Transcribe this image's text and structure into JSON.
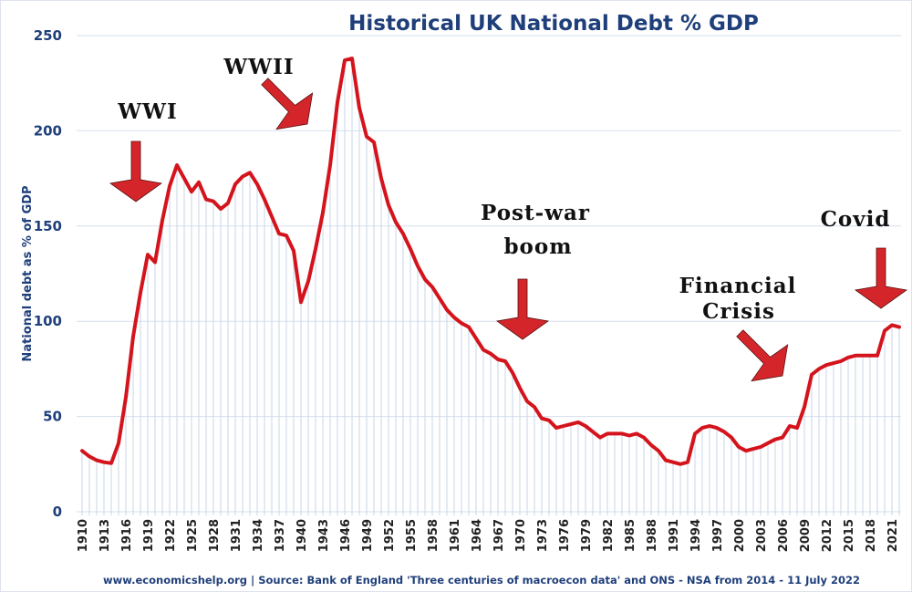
{
  "chart_data": {
    "type": "line",
    "title": "Historical UK National Debt % GDP",
    "ylabel": "National debt as % of GDP",
    "xlabel": "",
    "ylim": [
      0,
      250
    ],
    "yticks": [
      0,
      50,
      100,
      150,
      200,
      250
    ],
    "xlim": [
      1910,
      2022
    ],
    "xtick_labels": [
      "1910",
      "1913",
      "1916",
      "1919",
      "1922",
      "1925",
      "1928",
      "1931",
      "1934",
      "1937",
      "1940",
      "1943",
      "1946",
      "1949",
      "1952",
      "1955",
      "1958",
      "1961",
      "1964",
      "1967",
      "1970",
      "1973",
      "1976",
      "1979",
      "1982",
      "1985",
      "1988",
      "1991",
      "1994",
      "1997",
      "2000",
      "2003",
      "2006",
      "2009",
      "2012",
      "2015",
      "2018",
      "2021"
    ],
    "grid": "horizontal",
    "line_color": "#d4141c",
    "dropline_color": "#c9d6ea",
    "x": [
      1910,
      1911,
      1912,
      1913,
      1914,
      1915,
      1916,
      1917,
      1918,
      1919,
      1920,
      1921,
      1922,
      1923,
      1924,
      1925,
      1926,
      1927,
      1928,
      1929,
      1930,
      1931,
      1932,
      1933,
      1934,
      1935,
      1936,
      1937,
      1938,
      1939,
      1940,
      1941,
      1942,
      1943,
      1944,
      1945,
      1946,
      1947,
      1948,
      1949,
      1950,
      1951,
      1952,
      1953,
      1954,
      1955,
      1956,
      1957,
      1958,
      1959,
      1960,
      1961,
      1962,
      1963,
      1964,
      1965,
      1966,
      1967,
      1968,
      1969,
      1970,
      1971,
      1972,
      1973,
      1974,
      1975,
      1976,
      1977,
      1978,
      1979,
      1980,
      1981,
      1982,
      1983,
      1984,
      1985,
      1986,
      1987,
      1988,
      1989,
      1990,
      1991,
      1992,
      1993,
      1994,
      1995,
      1996,
      1997,
      1998,
      1999,
      2000,
      2001,
      2002,
      2003,
      2004,
      2005,
      2006,
      2007,
      2008,
      2009,
      2010,
      2011,
      2012,
      2013,
      2014,
      2015,
      2016,
      2017,
      2018,
      2019,
      2020,
      2021,
      2022
    ],
    "y": [
      32,
      29,
      27,
      26,
      25.5,
      36,
      60,
      92,
      115,
      135,
      131,
      153,
      171,
      182,
      175,
      168,
      173,
      164,
      163,
      159,
      162,
      172,
      176,
      178,
      172,
      164,
      155,
      146,
      145,
      137,
      110,
      121,
      138,
      157,
      182,
      215,
      237,
      238,
      212,
      197,
      194,
      175,
      161,
      152,
      146,
      138,
      129,
      122,
      118,
      112,
      106,
      102,
      99,
      97,
      91,
      85,
      83,
      80,
      79,
      73,
      65,
      58,
      55,
      49,
      48,
      44,
      45,
      46,
      47,
      45,
      42,
      39,
      41,
      41,
      41,
      40,
      41,
      39,
      35,
      32,
      27,
      26,
      25,
      26,
      41,
      44,
      45,
      44,
      42,
      39,
      34,
      32,
      33,
      34,
      36,
      38,
      39,
      45,
      44,
      55,
      72,
      75,
      77,
      78,
      79,
      81,
      82,
      82,
      82,
      82,
      95,
      98,
      97
    ],
    "annotations": [
      {
        "label": "WWI",
        "year": 1917
      },
      {
        "label": "WWII",
        "year": 1943
      },
      {
        "label": "Post-war",
        "label2": "boom",
        "year": 1970
      },
      {
        "label": "Financial",
        "label2": "Crisis",
        "year": 2008
      },
      {
        "label": "Covid",
        "year": 2020
      }
    ],
    "arrow_color": "#d4262a"
  },
  "source": "www.economicshelp.org | Source: Bank of England 'Three centuries of macroecon data' and ONS - NSA from 2014  - 11 July 2022"
}
